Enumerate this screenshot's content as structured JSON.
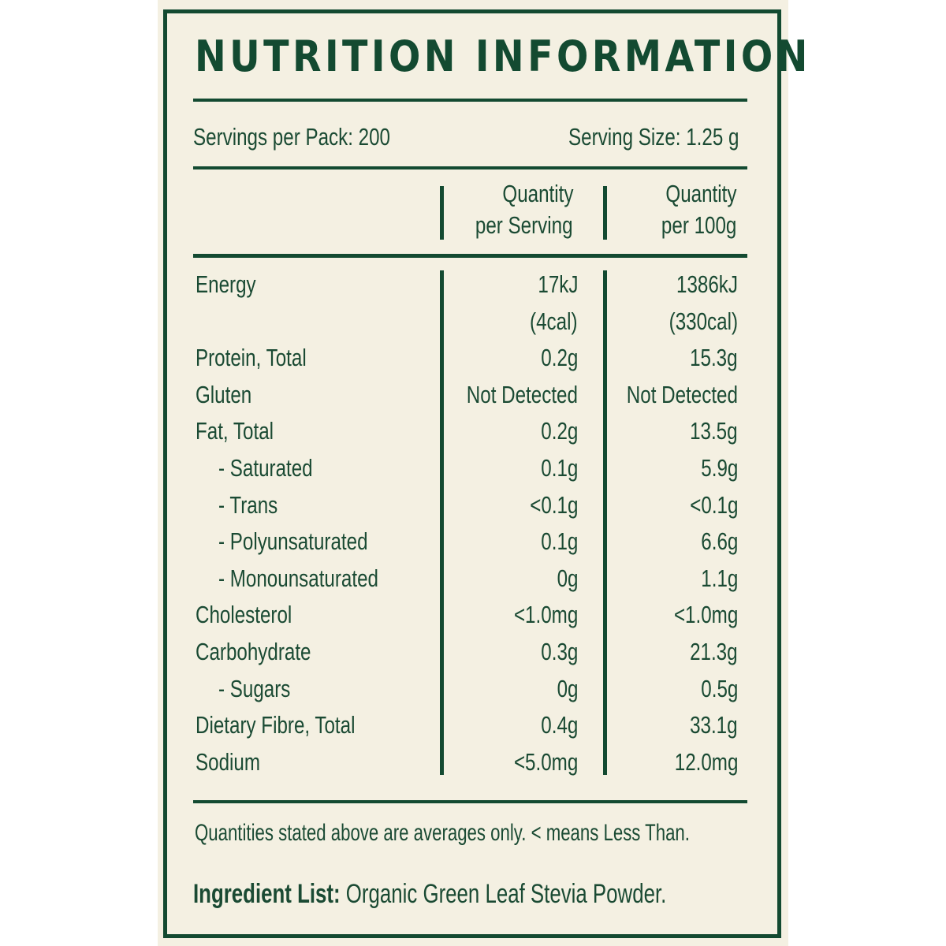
{
  "label": {
    "title": "NUTRITION INFORMATION",
    "servings_per_pack": "Servings per Pack: 200",
    "serving_size": "Serving Size: 1.25 g",
    "columns": {
      "per_serving_line1": "Quantity",
      "per_serving_line2": "per Serving",
      "per_100g_line1": "Quantity",
      "per_100g_line2": "per 100g"
    },
    "rows": [
      {
        "name": "Energy",
        "serving": "17kJ",
        "per100": "1386kJ",
        "indent": false
      },
      {
        "name": "",
        "serving": "(4cal)",
        "per100": "(330cal)",
        "indent": false
      },
      {
        "name": "Protein, Total",
        "serving": "0.2g",
        "per100": "15.3g",
        "indent": false
      },
      {
        "name": "Gluten",
        "serving": "Not Detected",
        "per100": "Not Detected",
        "indent": false
      },
      {
        "name": "Fat, Total",
        "serving": "0.2g",
        "per100": "13.5g",
        "indent": false
      },
      {
        "name": "- Saturated",
        "serving": "0.1g",
        "per100": "5.9g",
        "indent": true
      },
      {
        "name": "- Trans",
        "serving": "<0.1g",
        "per100": "<0.1g",
        "indent": true
      },
      {
        "name": "- Polyunsaturated",
        "serving": "0.1g",
        "per100": "6.6g",
        "indent": true
      },
      {
        "name": "- Monounsaturated",
        "serving": "0g",
        "per100": "1.1g",
        "indent": true
      },
      {
        "name": "Cholesterol",
        "serving": "<1.0mg",
        "per100": "<1.0mg",
        "indent": false
      },
      {
        "name": "Carbohydrate",
        "serving": "0.3g",
        "per100": "21.3g",
        "indent": false
      },
      {
        "name": "- Sugars",
        "serving": "0g",
        "per100": "0.5g",
        "indent": true
      },
      {
        "name": "Dietary Fibre, Total",
        "serving": "0.4g",
        "per100": "33.1g",
        "indent": false
      },
      {
        "name": "Sodium",
        "serving": "<5.0mg",
        "per100": "12.0mg",
        "indent": false
      }
    ],
    "footnote": "Quantities stated above are averages only. < means Less Than.",
    "ingredients_label": "Ingredient List:",
    "ingredients_value": "Organic Green Leaf Stevia Powder."
  },
  "colors": {
    "ink": "#134a31",
    "background": "#f4f0e2"
  }
}
